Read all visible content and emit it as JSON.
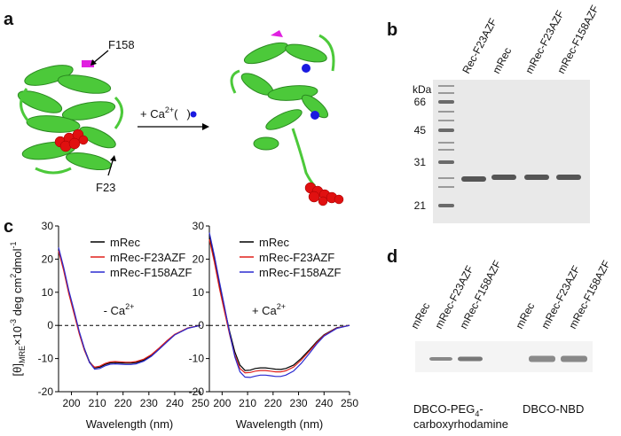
{
  "panel_labels": [
    "a",
    "b",
    "c",
    "d"
  ],
  "panel_a": {
    "f158": "F158",
    "f23": "F23",
    "ca": "+ Ca",
    "ca_sup": "2+",
    "open": "(",
    "close": ")"
  },
  "panel_b": {
    "unit": "kDa",
    "markers": [
      66,
      45,
      31,
      21
    ],
    "lanes": [
      "Rec-F23AZF",
      "mRec",
      "mRec-F23AZF",
      "mRec-F158AZF"
    ]
  },
  "panel_d": {
    "lanes": [
      "mRec",
      "mRec-F23AZF",
      "mRec-F158AZF",
      "mRec",
      "mRec-F23AZF",
      "mRec-F158AZF"
    ],
    "caption1": "DBCO-PEG",
    "caption1_sub": "4",
    "caption1_tail": "-",
    "caption1_line2": "carboxyrhodamine",
    "caption2": "DBCO-NBD"
  },
  "chart_data": [
    {
      "type": "line",
      "xlabel": "Wavelength (nm)",
      "ylabel_parts": [
        "[θ]",
        "MRE",
        "×10",
        "-3",
        " deg cm",
        "2",
        "dmol",
        "-1"
      ],
      "ylabel_shift": [
        "base",
        "sub",
        "base",
        "sup",
        "base",
        "sup",
        "base",
        "sup"
      ],
      "annotation": "- Ca",
      "annotation_sup": "2+",
      "x": [
        195,
        197,
        199,
        201,
        203,
        205,
        207,
        209,
        211,
        213,
        215,
        217,
        219,
        221,
        223,
        225,
        228,
        231,
        234,
        237,
        240,
        245,
        250
      ],
      "series": [
        {
          "name": "mRec",
          "color": "#000000",
          "values": [
            23,
            17,
            10,
            4,
            -2,
            -7,
            -11,
            -12.8,
            -12.6,
            -11.8,
            -11.3,
            -11.2,
            -11.3,
            -11.4,
            -11.4,
            -11.2,
            -10.5,
            -9,
            -7,
            -4.8,
            -2.8,
            -0.8,
            0
          ]
        },
        {
          "name": "mRec-F23AZF",
          "color": "#e0201b",
          "values": [
            22.5,
            16.5,
            9.5,
            3.5,
            -2.5,
            -7.5,
            -11.2,
            -12.6,
            -12.3,
            -11.5,
            -11,
            -10.9,
            -11,
            -11.1,
            -11.1,
            -10.9,
            -10.2,
            -8.8,
            -6.8,
            -4.6,
            -2.7,
            -0.8,
            0
          ]
        },
        {
          "name": "mRec-F158AZF",
          "color": "#2a2ad0",
          "values": [
            23.5,
            17.5,
            10.5,
            4.5,
            -1.8,
            -7,
            -11.2,
            -13.2,
            -13,
            -12.2,
            -11.7,
            -11.6,
            -11.7,
            -11.8,
            -11.8,
            -11.6,
            -10.8,
            -9.3,
            -7.2,
            -5,
            -2.9,
            -0.9,
            0
          ]
        }
      ],
      "xlim": [
        195,
        250
      ],
      "ylim": [
        -20,
        30
      ],
      "xticks": [
        200,
        210,
        220,
        230,
        240,
        250
      ],
      "yticks": [
        -20,
        -10,
        0,
        10,
        20,
        30
      ],
      "hline": 0,
      "legend": "upper right"
    },
    {
      "type": "line",
      "xlabel": "Wavelength (nm)",
      "annotation": "+ Ca",
      "annotation_sup": "2+",
      "x": [
        195,
        197,
        199,
        201,
        203,
        205,
        207,
        209,
        211,
        213,
        215,
        217,
        219,
        221,
        223,
        225,
        228,
        231,
        234,
        237,
        240,
        245,
        250
      ],
      "series": [
        {
          "name": "mRec",
          "color": "#000000",
          "values": [
            27,
            20,
            12,
            5,
            -2,
            -8,
            -12,
            -13.6,
            -13.5,
            -13,
            -12.8,
            -12.8,
            -13,
            -13.2,
            -13.3,
            -13,
            -12,
            -10,
            -7.6,
            -5,
            -2.8,
            -0.7,
            0
          ]
        },
        {
          "name": "mRec-F23AZF",
          "color": "#e0201b",
          "values": [
            26,
            19,
            11,
            4,
            -3,
            -9,
            -13,
            -14.3,
            -14.2,
            -13.8,
            -13.6,
            -13.6,
            -13.8,
            -14,
            -14,
            -13.7,
            -12.6,
            -10.5,
            -8,
            -5.3,
            -3,
            -0.8,
            0
          ]
        },
        {
          "name": "mRec-F158AZF",
          "color": "#2a2ad0",
          "values": [
            28,
            21,
            13,
            5.5,
            -2.5,
            -9.5,
            -14,
            -15.6,
            -15.7,
            -15.3,
            -15,
            -15,
            -15.2,
            -15.4,
            -15.4,
            -15,
            -13.8,
            -11.5,
            -8.7,
            -5.7,
            -3.2,
            -0.9,
            0
          ]
        }
      ],
      "xlim": [
        195,
        250
      ],
      "ylim": [
        -20,
        30
      ],
      "xticks": [
        200,
        210,
        220,
        230,
        240,
        250
      ],
      "yticks": [
        -20,
        -10,
        0,
        10,
        20,
        30
      ],
      "hline": 0,
      "legend": "upper right"
    }
  ]
}
